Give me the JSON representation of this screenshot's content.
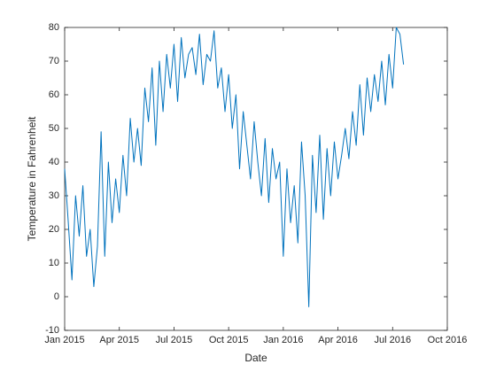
{
  "chart_data": {
    "type": "line",
    "xlabel": "Date",
    "ylabel": "Temperature in Fahrenheit",
    "x": [
      0,
      0.2,
      0.4,
      0.6,
      0.8,
      1,
      1.2,
      1.4,
      1.6,
      1.8,
      2,
      2.2,
      2.4,
      2.6,
      2.8,
      3,
      3.2,
      3.4,
      3.6,
      3.8,
      4,
      4.2,
      4.4,
      4.6,
      4.8,
      5,
      5.2,
      5.4,
      5.6,
      5.8,
      6,
      6.2,
      6.4,
      6.6,
      6.8,
      7,
      7.2,
      7.4,
      7.6,
      7.8,
      8,
      8.2,
      8.4,
      8.6,
      8.8,
      9,
      9.2,
      9.4,
      9.6,
      9.8,
      10,
      10.2,
      10.4,
      10.6,
      10.8,
      11,
      11.2,
      11.4,
      11.6,
      11.8,
      12,
      12.2,
      12.4,
      12.6,
      12.8,
      13,
      13.2,
      13.4,
      13.6,
      13.8,
      14,
      14.2,
      14.4,
      14.6,
      14.8,
      15,
      15.2,
      15.4,
      15.6,
      15.8,
      16,
      16.2,
      16.4,
      16.6,
      16.8,
      17,
      17.2,
      17.4,
      17.6,
      17.8,
      18,
      18.2,
      18.4,
      18.6
    ],
    "series": [
      {
        "color": "#0072bd",
        "values": [
          38,
          22,
          5,
          30,
          18,
          33,
          12,
          20,
          3,
          15,
          49,
          12,
          40,
          22,
          35,
          25,
          42,
          30,
          53,
          40,
          50,
          39,
          62,
          52,
          68,
          45,
          70,
          55,
          72,
          62,
          75,
          58,
          77,
          65,
          72,
          74,
          66,
          78,
          63,
          72,
          70,
          79,
          62,
          68,
          55,
          66,
          50,
          60,
          38,
          55,
          45,
          35,
          52,
          40,
          30,
          47,
          28,
          44,
          35,
          40,
          12,
          38,
          22,
          33,
          16,
          46,
          30,
          -3,
          42,
          25,
          48,
          23,
          44,
          30,
          46,
          35,
          42,
          50,
          41,
          55,
          45,
          63,
          48,
          65,
          55,
          66,
          58,
          70,
          57,
          72,
          62,
          80,
          78,
          69
        ]
      }
    ],
    "xlim": [
      0,
      21
    ],
    "xticks": [
      {
        "value": 0,
        "label": "Jan 2015"
      },
      {
        "value": 3,
        "label": "Apr 2015"
      },
      {
        "value": 6,
        "label": "Jul 2015"
      },
      {
        "value": 9,
        "label": "Oct 2015"
      },
      {
        "value": 12,
        "label": "Jan 2016"
      },
      {
        "value": 15,
        "label": "Apr 2016"
      },
      {
        "value": 18,
        "label": "Jul 2016"
      },
      {
        "value": 21,
        "label": "Oct 2016"
      }
    ],
    "ylim": [
      -10,
      80
    ],
    "yticks": [
      -10,
      0,
      10,
      20,
      30,
      40,
      50,
      60,
      70,
      80
    ]
  }
}
